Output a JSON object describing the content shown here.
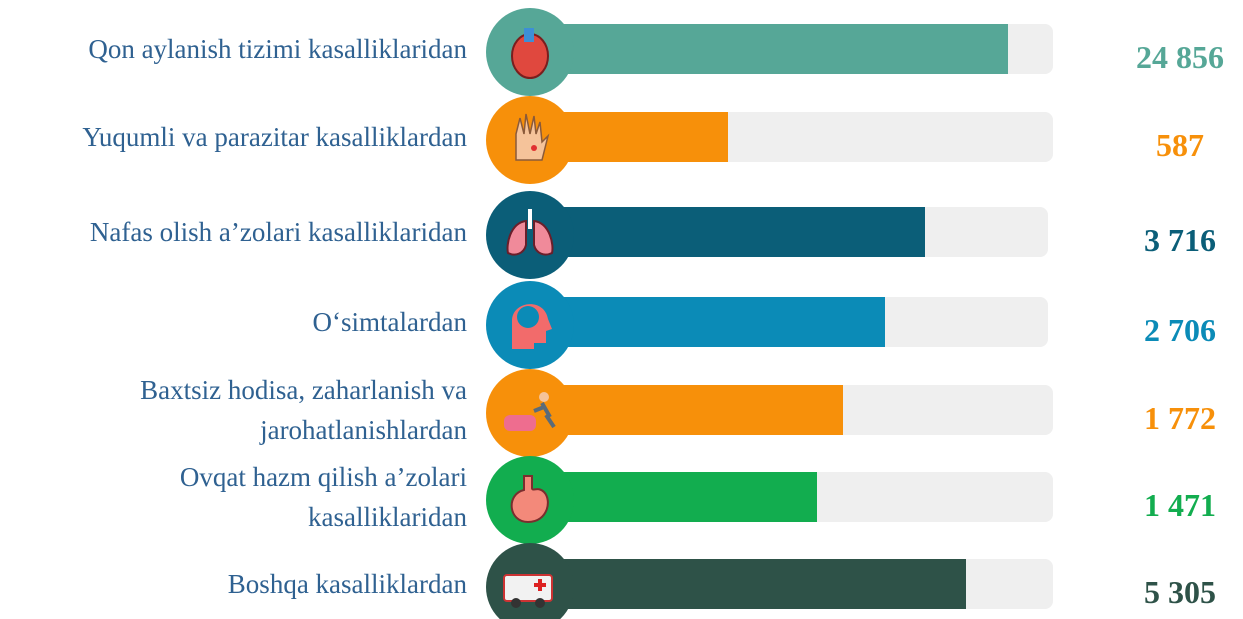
{
  "rows": [
    {
      "label": [
        "Qon aylanish tizimi kasalliklaridan"
      ],
      "value": "24 856"
    },
    {
      "label": [
        "Yuqumli va parazitar kasalliklardan"
      ],
      "value": "587"
    },
    {
      "label": [
        "Nafas olish a’zolari kasalliklaridan"
      ],
      "value": "3 716"
    },
    {
      "label": [
        "O‘simtalardan"
      ],
      "value": "2 706"
    },
    {
      "label": [
        "Baxtsiz hodisa, zaharlanish va",
        "jarohatlanishlardan"
      ],
      "value": "1 772"
    },
    {
      "label": [
        "Ovqat hazm qilish a’zolari",
        "kasalliklaridan"
      ],
      "value": "1 471"
    },
    {
      "label": [
        "Boshqa kasalliklardan"
      ],
      "value": "5 305"
    }
  ]
}
